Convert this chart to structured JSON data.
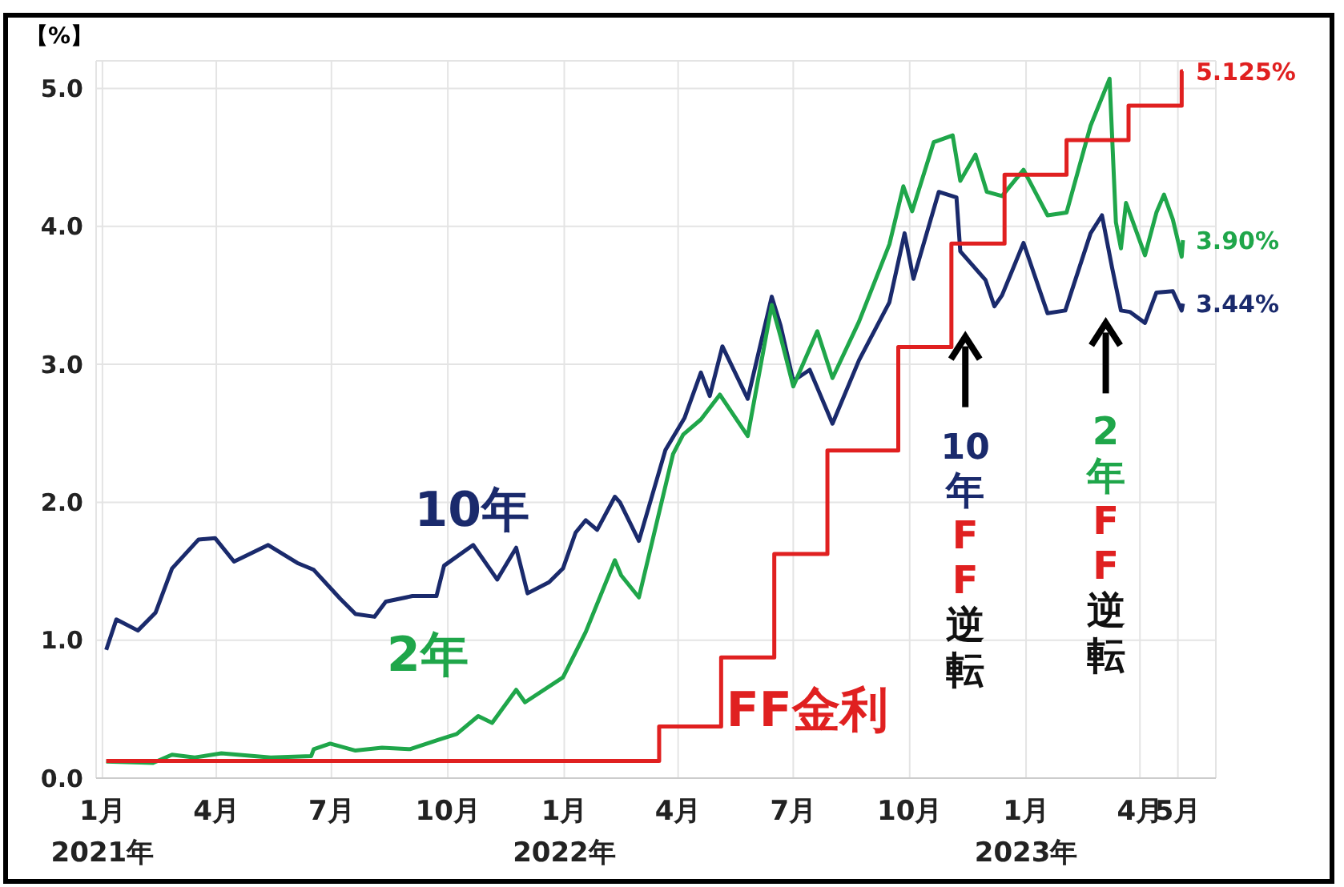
{
  "chart_data": {
    "type": "line",
    "ylabel": "【%】",
    "xlim": [
      "2020-12-27",
      "2023-05-31"
    ],
    "xticks": [
      {
        "value": "2021-01-01",
        "label": "1月\n2021年"
      },
      {
        "value": "2021-04-01",
        "label": "4月"
      },
      {
        "value": "2021-07-01",
        "label": "7月"
      },
      {
        "value": "2021-10-01",
        "label": "10月"
      },
      {
        "value": "2022-01-01",
        "label": "1月\n2022年"
      },
      {
        "value": "2022-04-01",
        "label": "4月"
      },
      {
        "value": "2022-07-01",
        "label": "7月"
      },
      {
        "value": "2022-10-01",
        "label": "10月"
      },
      {
        "value": "2023-01-01",
        "label": "1月\n2023年"
      },
      {
        "value": "2023-04-01",
        "label": "4月"
      },
      {
        "value": "2023-05-01",
        "label": "5月"
      }
    ],
    "ylim": [
      0,
      5.2
    ],
    "yticks": [
      {
        "value": 0,
        "label": "0.0"
      },
      {
        "value": 1,
        "label": "1.0"
      },
      {
        "value": 2,
        "label": "2.0"
      },
      {
        "value": 3,
        "label": "3.0"
      },
      {
        "value": 4,
        "label": "4.0"
      },
      {
        "value": 5,
        "label": "5.0"
      }
    ],
    "grid": true,
    "marker": "none",
    "line_style": "solid",
    "series": [
      {
        "name": "10年",
        "color": "#1a2a6c",
        "x": [
          "2021-01-04",
          "2021-01-12",
          "2021-01-29",
          "2021-02-12",
          "2021-02-25",
          "2021-03-18",
          "2021-03-31",
          "2021-04-15",
          "2021-05-12",
          "2021-06-04",
          "2021-06-17",
          "2021-07-08",
          "2021-07-20",
          "2021-08-04",
          "2021-08-13",
          "2021-09-03",
          "2021-09-22",
          "2021-09-28",
          "2021-10-21",
          "2021-11-09",
          "2021-11-24",
          "2021-12-03",
          "2021-12-20",
          "2021-12-31",
          "2022-01-10",
          "2022-01-18",
          "2022-01-27",
          "2022-02-10",
          "2022-02-14",
          "2022-03-01",
          "2022-03-22",
          "2022-04-06",
          "2022-04-19",
          "2022-04-26",
          "2022-05-06",
          "2022-05-26",
          "2022-06-14",
          "2022-06-21",
          "2022-07-01",
          "2022-07-14",
          "2022-08-01",
          "2022-08-22",
          "2022-09-15",
          "2022-09-27",
          "2022-10-04",
          "2022-10-24",
          "2022-11-07",
          "2022-11-10",
          "2022-11-30",
          "2022-12-07",
          "2022-12-13",
          "2022-12-30",
          "2023-01-18",
          "2023-02-01",
          "2023-02-21",
          "2023-03-02",
          "2023-03-10",
          "2023-03-17",
          "2023-03-24",
          "2023-04-05",
          "2023-04-14",
          "2023-04-27",
          "2023-05-04",
          "2023-05-05"
        ],
        "values": [
          0.93,
          1.15,
          1.07,
          1.2,
          1.52,
          1.73,
          1.74,
          1.57,
          1.69,
          1.56,
          1.51,
          1.3,
          1.19,
          1.17,
          1.28,
          1.32,
          1.32,
          1.54,
          1.69,
          1.44,
          1.67,
          1.34,
          1.42,
          1.52,
          1.78,
          1.87,
          1.8,
          2.04,
          2.0,
          1.72,
          2.38,
          2.61,
          2.94,
          2.77,
          3.13,
          2.75,
          3.49,
          3.28,
          2.88,
          2.96,
          2.57,
          3.03,
          3.45,
          3.95,
          3.62,
          4.25,
          4.21,
          3.82,
          3.61,
          3.42,
          3.5,
          3.88,
          3.37,
          3.39,
          3.95,
          4.08,
          3.7,
          3.39,
          3.38,
          3.3,
          3.52,
          3.53,
          3.39,
          3.44
        ]
      },
      {
        "name": "2年",
        "color": "#1fa64a",
        "x": [
          "2021-01-04",
          "2021-02-10",
          "2021-02-25",
          "2021-03-15",
          "2021-04-05",
          "2021-05-14",
          "2021-06-15",
          "2021-06-17",
          "2021-06-30",
          "2021-07-20",
          "2021-08-10",
          "2021-09-01",
          "2021-09-24",
          "2021-10-08",
          "2021-10-25",
          "2021-11-05",
          "2021-11-24",
          "2021-12-01",
          "2021-12-31",
          "2022-01-18",
          "2022-02-10",
          "2022-02-15",
          "2022-03-01",
          "2022-03-28",
          "2022-04-05",
          "2022-04-19",
          "2022-05-04",
          "2022-05-26",
          "2022-06-14",
          "2022-06-21",
          "2022-07-01",
          "2022-07-20",
          "2022-08-01",
          "2022-08-22",
          "2022-09-15",
          "2022-09-26",
          "2022-10-03",
          "2022-10-20",
          "2022-11-04",
          "2022-11-10",
          "2022-11-22",
          "2022-12-01",
          "2022-12-13",
          "2022-12-30",
          "2023-01-18",
          "2023-02-02",
          "2023-02-21",
          "2023-03-08",
          "2023-03-13",
          "2023-03-17",
          "2023-03-21",
          "2023-04-05",
          "2023-04-14",
          "2023-04-20",
          "2023-04-27",
          "2023-05-04",
          "2023-05-05"
        ],
        "values": [
          0.12,
          0.11,
          0.17,
          0.15,
          0.18,
          0.15,
          0.16,
          0.21,
          0.25,
          0.2,
          0.22,
          0.21,
          0.28,
          0.32,
          0.45,
          0.4,
          0.64,
          0.55,
          0.73,
          1.06,
          1.58,
          1.47,
          1.31,
          2.35,
          2.49,
          2.6,
          2.78,
          2.48,
          3.43,
          3.2,
          2.84,
          3.24,
          2.9,
          3.31,
          3.87,
          4.29,
          4.11,
          4.61,
          4.66,
          4.33,
          4.52,
          4.25,
          4.22,
          4.41,
          4.08,
          4.1,
          4.73,
          5.07,
          4.03,
          3.84,
          4.17,
          3.79,
          4.1,
          4.23,
          4.05,
          3.78,
          3.9
        ]
      },
      {
        "name": "FF金利",
        "type": "step",
        "color": "#e02020",
        "x": [
          "2021-01-04",
          "2022-03-17",
          "2022-05-05",
          "2022-06-16",
          "2022-07-28",
          "2022-09-22",
          "2022-11-03",
          "2022-12-15",
          "2023-02-02",
          "2023-03-23",
          "2023-05-04",
          "2023-05-05"
        ],
        "values": [
          0.125,
          0.375,
          0.875,
          1.625,
          2.375,
          3.125,
          3.875,
          4.375,
          4.625,
          4.875,
          5.125,
          5.125
        ]
      }
    ],
    "annotations": [
      {
        "text": "5.125%",
        "x": "2023-05-05",
        "y": 5.125
      },
      {
        "text": "3.90%",
        "x": "2023-05-05",
        "y": 3.9
      },
      {
        "text": "3.44%",
        "x": "2023-05-05",
        "y": 3.44
      },
      "10年FF逆転",
      "2年FF逆転"
    ]
  }
}
